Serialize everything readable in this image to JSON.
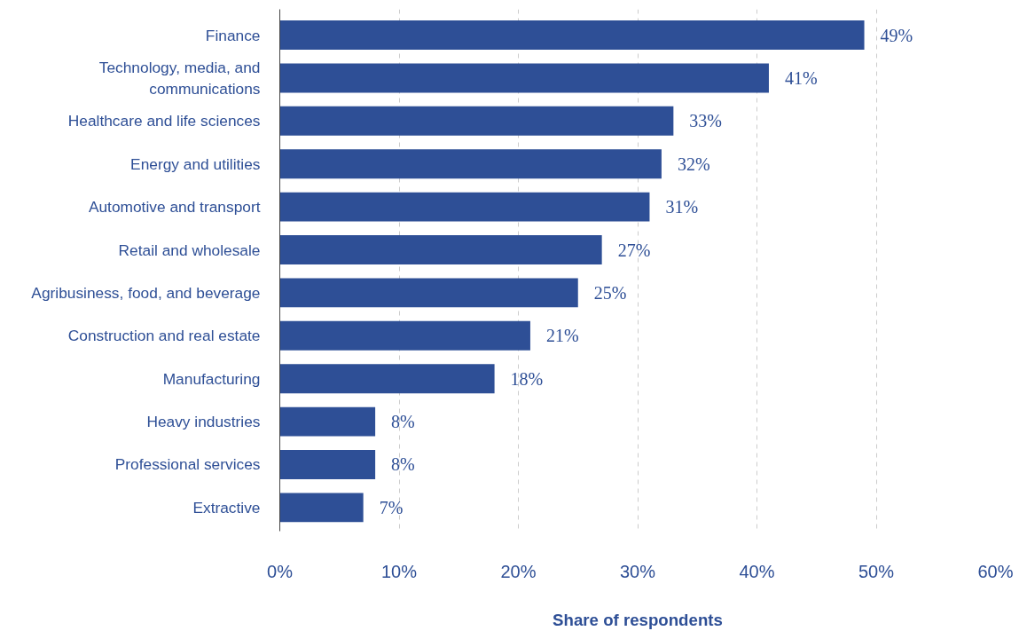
{
  "chart_data": {
    "type": "bar",
    "orientation": "horizontal",
    "xlabel": "Share of respondents",
    "categories": [
      "Finance",
      "Technology, media, and\ncommunications",
      "Healthcare and life sciences",
      "Energy and utilities",
      "Automotive and transport",
      "Retail and wholesale",
      "Agribusiness, food, and beverage",
      "Construction and real estate",
      "Manufacturing",
      "Heavy industries",
      "Professional services",
      "Extractive"
    ],
    "values": [
      49,
      41,
      33,
      32,
      31,
      27,
      25,
      21,
      18,
      8,
      8,
      7
    ],
    "value_labels": [
      "49%",
      "41%",
      "33%",
      "32%",
      "31%",
      "27%",
      "25%",
      "21%",
      "18%",
      "8%",
      "8%",
      "7%"
    ],
    "color": "#2e4f96",
    "xlim": [
      0,
      60
    ],
    "xticks": [
      {
        "value": 0,
        "label": "0%"
      },
      {
        "value": 10,
        "label": "10%"
      },
      {
        "value": 20,
        "label": "20%"
      },
      {
        "value": 30,
        "label": "30%"
      },
      {
        "value": 40,
        "label": "40%"
      },
      {
        "value": 50,
        "label": "50%"
      },
      {
        "value": 60,
        "label": "60%"
      }
    ],
    "grid": "x"
  }
}
